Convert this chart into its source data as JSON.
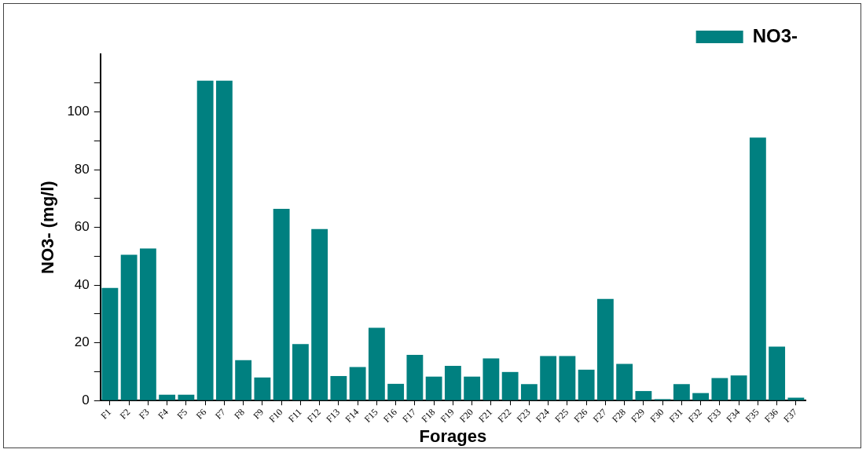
{
  "chart_data": {
    "type": "bar",
    "xlabel": "Forages",
    "ylabel": "NO3- (mg/l)",
    "categories": [
      "F1",
      "F2",
      "F3",
      "F4",
      "F5",
      "F6",
      "F7",
      "F8",
      "F9",
      "F10",
      "F11",
      "F12",
      "F13",
      "F14",
      "F15",
      "F16",
      "F17",
      "F18",
      "F19",
      "F20",
      "F21",
      "F22",
      "F23",
      "F24",
      "F25",
      "F26",
      "F27",
      "F28",
      "F29",
      "F30",
      "F31",
      "F32",
      "F33",
      "F34",
      "F35",
      "F36",
      "F37"
    ],
    "series": [
      {
        "name": "NO3-",
        "color": "#008080",
        "values": [
          39.0,
          50.5,
          52.7,
          2.0,
          2.0,
          110.8,
          110.8,
          14.0,
          8.0,
          66.4,
          19.6,
          59.4,
          8.5,
          11.6,
          25.2,
          5.8,
          15.8,
          8.3,
          12.0,
          8.3,
          14.6,
          9.9,
          5.7,
          15.4,
          15.4,
          10.7,
          35.2,
          12.7,
          3.3,
          0.5,
          5.7,
          2.6,
          7.8,
          8.7,
          91.1,
          18.7,
          1.0
        ]
      }
    ],
    "ylim": [
      0,
      120
    ],
    "yticks": [
      0,
      {
        "value": 10,
        "label": null
      },
      20,
      {
        "value": 30,
        "label": null
      },
      40,
      {
        "value": 50,
        "label": null
      },
      60,
      {
        "value": 70,
        "label": null
      },
      80,
      {
        "value": 90,
        "label": null
      },
      100,
      {
        "value": 110,
        "label": null
      }
    ],
    "grid": false,
    "legend": "top right"
  }
}
